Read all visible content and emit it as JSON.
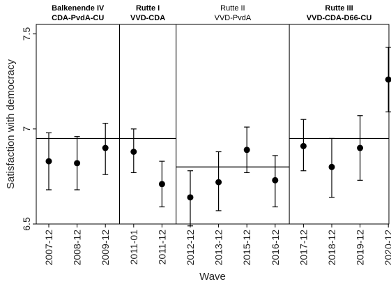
{
  "chart_data": {
    "type": "scatter",
    "xlabel": "Wave",
    "ylabel": "Satisfaction with democracy",
    "ylim": [
      6.5,
      7.55
    ],
    "yticks": [
      6.5,
      7,
      7.5
    ],
    "ytick_labels": [
      "6.5",
      "7",
      "7.5"
    ],
    "categories": [
      "2007-12",
      "2008-12",
      "2009-12",
      "2011-01",
      "2011-12",
      "2012-12",
      "2013-12",
      "2015-12",
      "2016-12",
      "2017-12",
      "2018-12",
      "2019-12",
      "2020-12"
    ],
    "points": [
      {
        "wave": "2007-12",
        "mean": 6.83,
        "lower": 6.68,
        "upper": 6.98
      },
      {
        "wave": "2008-12",
        "mean": 6.82,
        "lower": 6.68,
        "upper": 6.96
      },
      {
        "wave": "2009-12",
        "mean": 6.9,
        "lower": 6.76,
        "upper": 7.03
      },
      {
        "wave": "2011-01",
        "mean": 6.88,
        "lower": 6.77,
        "upper": 7.0
      },
      {
        "wave": "2011-12",
        "mean": 6.71,
        "lower": 6.59,
        "upper": 6.83
      },
      {
        "wave": "2012-12",
        "mean": 6.64,
        "lower": 6.49,
        "upper": 6.78
      },
      {
        "wave": "2013-12",
        "mean": 6.72,
        "lower": 6.57,
        "upper": 6.88
      },
      {
        "wave": "2015-12",
        "mean": 6.89,
        "lower": 6.77,
        "upper": 7.01
      },
      {
        "wave": "2016-12",
        "mean": 6.73,
        "lower": 6.59,
        "upper": 6.86
      },
      {
        "wave": "2017-12",
        "mean": 6.91,
        "lower": 6.78,
        "upper": 7.05
      },
      {
        "wave": "2018-12",
        "mean": 6.8,
        "lower": 6.64,
        "upper": 6.95
      },
      {
        "wave": "2019-12",
        "mean": 6.9,
        "lower": 6.73,
        "upper": 7.07
      },
      {
        "wave": "2020-12",
        "mean": 7.26,
        "lower": 7.09,
        "upper": 7.43
      }
    ],
    "periods": [
      {
        "line1": "Balkenende IV",
        "line2": "CDA-PvdA-CU",
        "bold": true,
        "first_wave": 0,
        "last_wave": 2,
        "mean": 6.95
      },
      {
        "line1": "Rutte I",
        "line2": "VVD-CDA",
        "bold": true,
        "first_wave": 3,
        "last_wave": 4,
        "mean": 6.95
      },
      {
        "line1": "Rutte II",
        "line2": "VVD-PvdA",
        "bold": false,
        "first_wave": 5,
        "last_wave": 8,
        "mean": 6.8
      },
      {
        "line1": "Rutte III",
        "line2": "VVD-CDA-D66-CU",
        "bold": true,
        "first_wave": 9,
        "last_wave": 12,
        "mean": 6.95
      }
    ],
    "grid": false,
    "legend": "none"
  }
}
